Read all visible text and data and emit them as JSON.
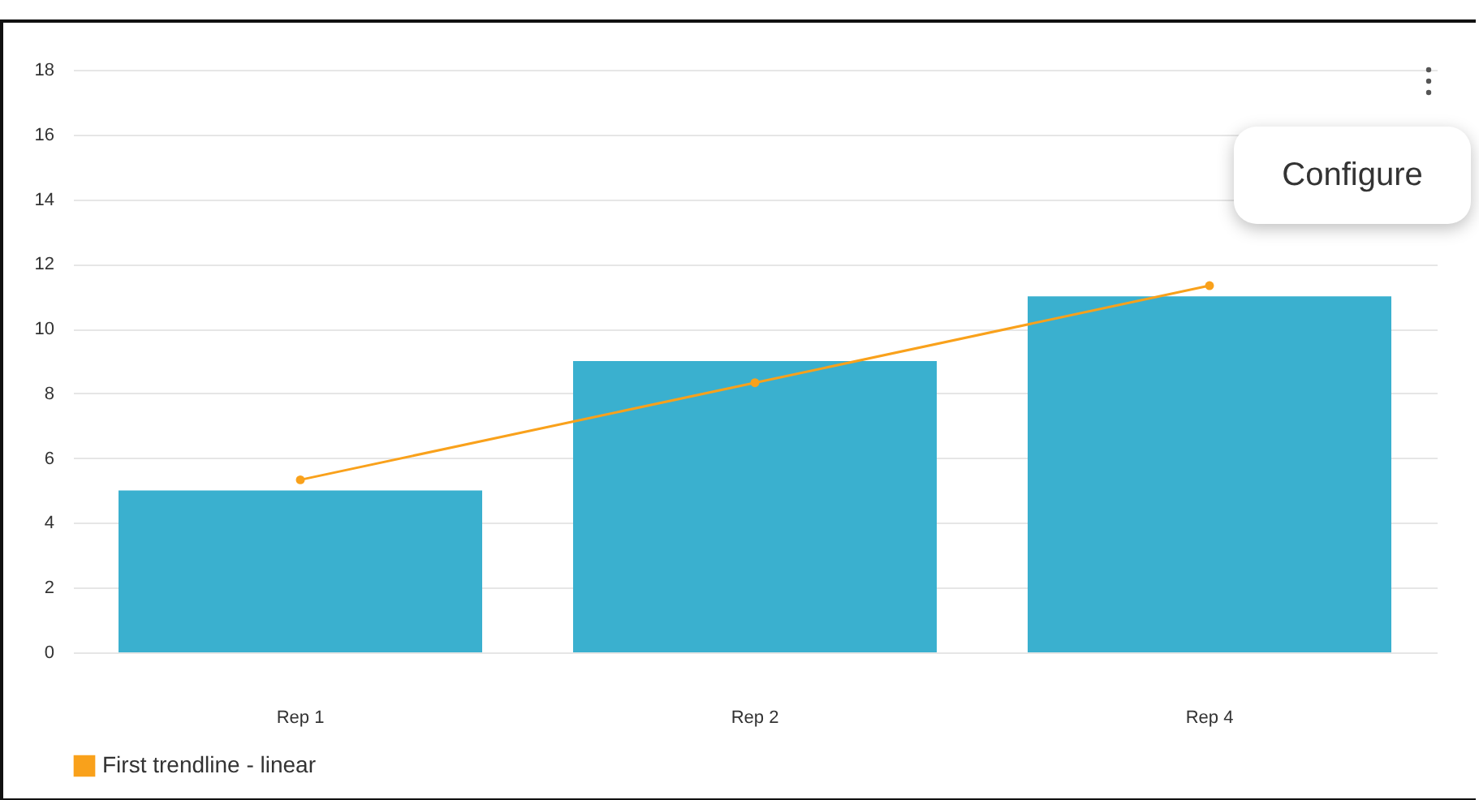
{
  "chart_data": {
    "type": "bar",
    "categories": [
      "Rep 1",
      "Rep 2",
      "Rep 4"
    ],
    "series": [
      {
        "color": "#3ab0cf",
        "values": [
          5,
          9,
          11
        ]
      },
      {
        "type": "line",
        "name": "First trendline - linear",
        "color": "#f9a11b",
        "values": [
          5.33,
          8.33,
          11.33
        ]
      }
    ],
    "ylim": [
      0,
      18
    ],
    "yticks": [
      0,
      2,
      4,
      6,
      8,
      10,
      12,
      14,
      16,
      18
    ],
    "grid": "y",
    "legend": "bottom",
    "marker": "circle",
    "annotations": [
      "Configure"
    ]
  }
}
